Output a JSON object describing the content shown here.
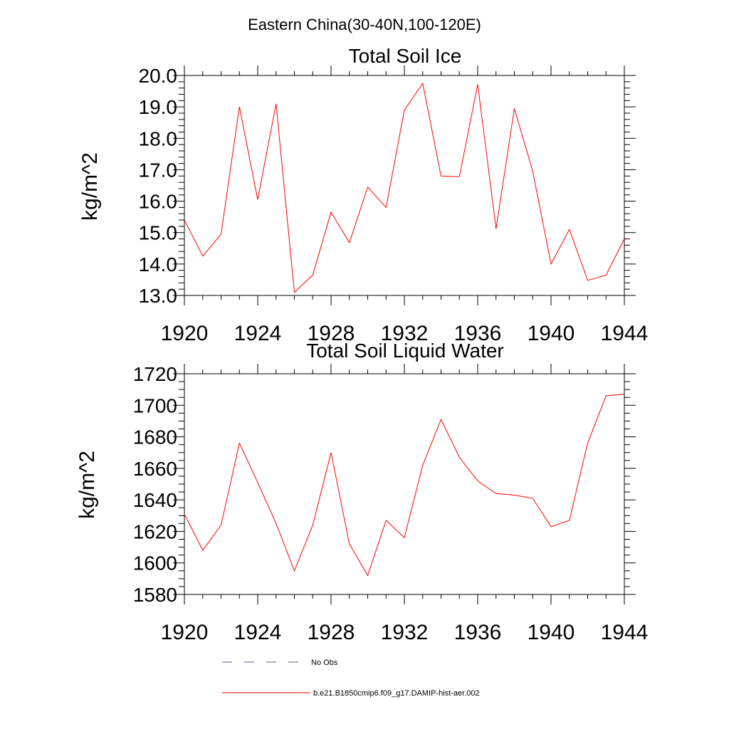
{
  "figure_title": "Eastern China(30-40N,100-120E)",
  "colors": {
    "series": "#ff0000",
    "obs": "#5a5a8a",
    "axis": "#000000"
  },
  "legend": {
    "entries": [
      {
        "label": "No Obs",
        "style": "dashed"
      },
      {
        "label": "b.e21.B1850cmip6.f09_g17.DAMIP-hist-aer.002",
        "style": "solid"
      }
    ]
  },
  "chart_data": [
    {
      "type": "line",
      "title": "Total Soil Ice",
      "xlabel": "",
      "ylabel": "kg/m^2",
      "xlim": [
        1920,
        1944
      ],
      "ylim": [
        13.0,
        20.0
      ],
      "xticks": [
        "1920",
        "1924",
        "1928",
        "1932",
        "1936",
        "1940",
        "1944"
      ],
      "yticks": [
        "13.0",
        "14.0",
        "15.0",
        "16.0",
        "17.0",
        "18.0",
        "19.0",
        "20.0"
      ],
      "x": [
        1920,
        1921,
        1922,
        1923,
        1924,
        1925,
        1926,
        1927,
        1928,
        1929,
        1930,
        1931,
        1932,
        1933,
        1934,
        1935,
        1936,
        1937,
        1938,
        1939,
        1940,
        1941,
        1942,
        1943,
        1944
      ],
      "series": [
        {
          "name": "b.e21.B1850cmip6.f09_g17.DAMIP-hist-aer.002",
          "values": [
            15.4,
            14.25,
            14.95,
            19.0,
            16.05,
            19.1,
            13.1,
            13.65,
            15.65,
            14.68,
            16.45,
            15.8,
            18.9,
            19.75,
            16.8,
            16.78,
            19.72,
            15.12,
            18.95,
            16.95,
            14.0,
            15.1,
            13.48,
            13.65,
            14.8
          ]
        }
      ]
    },
    {
      "type": "line",
      "title": "Total Soil Liquid Water",
      "xlabel": "",
      "ylabel": "kg/m^2",
      "xlim": [
        1920,
        1944
      ],
      "ylim": [
        1580,
        1720
      ],
      "xticks": [
        "1920",
        "1924",
        "1928",
        "1932",
        "1936",
        "1940",
        "1944"
      ],
      "yticks": [
        "1580",
        "1600",
        "1620",
        "1640",
        "1660",
        "1680",
        "1700",
        "1720"
      ],
      "x": [
        1920,
        1921,
        1922,
        1923,
        1924,
        1925,
        1926,
        1927,
        1928,
        1929,
        1930,
        1931,
        1932,
        1933,
        1934,
        1935,
        1936,
        1937,
        1938,
        1939,
        1940,
        1941,
        1942,
        1943,
        1944
      ],
      "series": [
        {
          "name": "b.e21.B1850cmip6.f09_g17.DAMIP-hist-aer.002",
          "values": [
            1631,
            1608,
            1624,
            1676,
            1651,
            1625,
            1595,
            1624,
            1670,
            1612,
            1592,
            1627,
            1616,
            1662,
            1691,
            1667,
            1652,
            1644,
            1643,
            1641,
            1623,
            1627,
            1676,
            1706,
            1707
          ]
        }
      ]
    }
  ]
}
